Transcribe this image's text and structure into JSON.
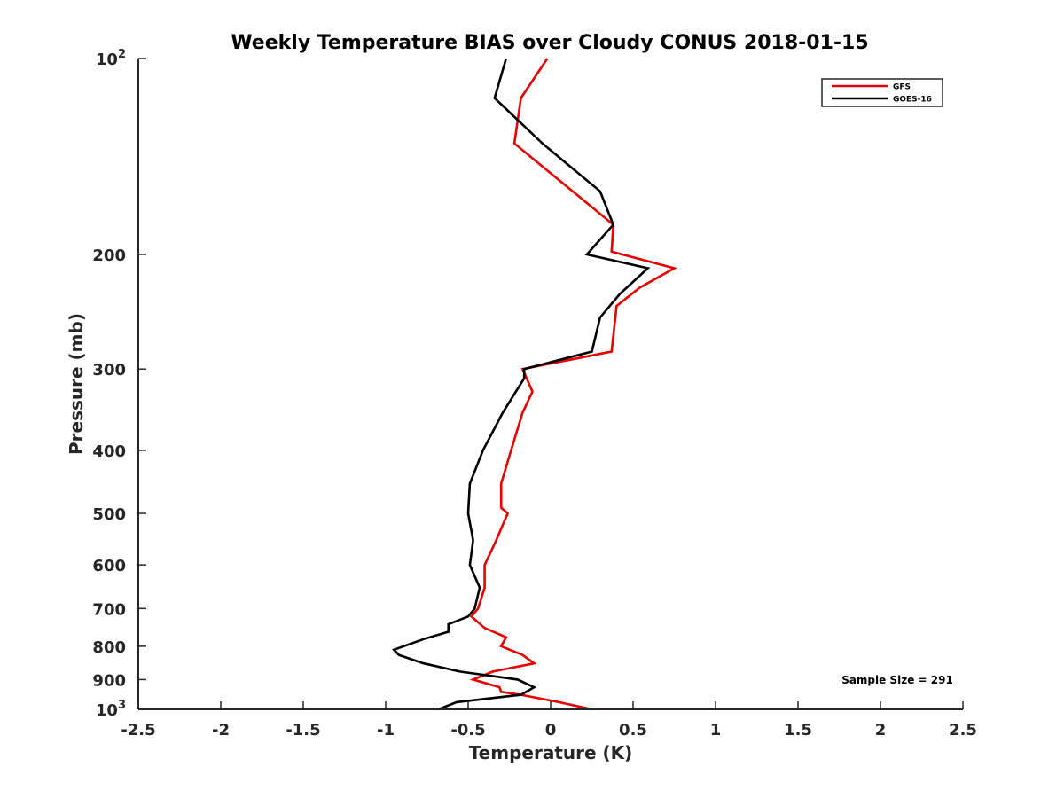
{
  "chart_data": {
    "type": "line",
    "title": "Weekly Temperature BIAS over Cloudy CONUS 2018-01-15",
    "xlabel": "Temperature (K)",
    "ylabel": "Pressure (mb)",
    "xlim": [
      -2.5,
      2.5
    ],
    "ylim": [
      1000,
      100
    ],
    "yscale": "log",
    "y_reversed": true,
    "grid": false,
    "legend_position": "top-right",
    "x_ticks": [
      "-2.5",
      "-2",
      "-1.5",
      "-1",
      "-0.5",
      "0",
      "0.5",
      "1",
      "1.5",
      "2",
      "2.5"
    ],
    "y_ticks": [
      {
        "value": 100,
        "base": "10",
        "exp": "2"
      },
      {
        "value": 200,
        "label": "200"
      },
      {
        "value": 300,
        "label": "300"
      },
      {
        "value": 400,
        "label": "400"
      },
      {
        "value": 500,
        "label": "500"
      },
      {
        "value": 600,
        "label": "600"
      },
      {
        "value": 700,
        "label": "700"
      },
      {
        "value": 800,
        "label": "800"
      },
      {
        "value": 900,
        "label": "900"
      },
      {
        "value": 1000,
        "base": "10",
        "exp": "3"
      }
    ],
    "series": [
      {
        "name": "GFS",
        "color": "#e60000",
        "points": [
          [
            0.25,
            1000
          ],
          [
            0.05,
            975
          ],
          [
            -0.18,
            950
          ],
          [
            -0.3,
            940
          ],
          [
            -0.31,
            925
          ],
          [
            -0.47,
            900
          ],
          [
            -0.35,
            875
          ],
          [
            -0.1,
            850
          ],
          [
            -0.17,
            825
          ],
          [
            -0.3,
            800
          ],
          [
            -0.27,
            775
          ],
          [
            -0.4,
            750
          ],
          [
            -0.48,
            720
          ],
          [
            -0.44,
            700
          ],
          [
            -0.4,
            650
          ],
          [
            -0.4,
            600
          ],
          [
            -0.33,
            550
          ],
          [
            -0.26,
            500
          ],
          [
            -0.3,
            490
          ],
          [
            -0.3,
            450
          ],
          [
            -0.24,
            400
          ],
          [
            -0.17,
            350
          ],
          [
            -0.11,
            325
          ],
          [
            -0.17,
            300
          ],
          [
            0.37,
            282
          ],
          [
            0.4,
            240
          ],
          [
            0.54,
            225
          ],
          [
            0.75,
            210
          ],
          [
            0.37,
            198
          ],
          [
            0.38,
            180
          ],
          [
            -0.22,
            135
          ],
          [
            -0.18,
            115
          ],
          [
            -0.02,
            100
          ]
        ]
      },
      {
        "name": "GOES-16",
        "color": "#000000",
        "points": [
          [
            -0.68,
            1000
          ],
          [
            -0.57,
            975
          ],
          [
            -0.18,
            950
          ],
          [
            -0.1,
            925
          ],
          [
            -0.2,
            900
          ],
          [
            -0.55,
            875
          ],
          [
            -0.77,
            850
          ],
          [
            -0.92,
            825
          ],
          [
            -0.95,
            810
          ],
          [
            -0.77,
            780
          ],
          [
            -0.62,
            760
          ],
          [
            -0.62,
            740
          ],
          [
            -0.5,
            720
          ],
          [
            -0.46,
            700
          ],
          [
            -0.43,
            650
          ],
          [
            -0.49,
            600
          ],
          [
            -0.47,
            550
          ],
          [
            -0.5,
            500
          ],
          [
            -0.49,
            450
          ],
          [
            -0.41,
            400
          ],
          [
            -0.29,
            350
          ],
          [
            -0.16,
            310
          ],
          [
            -0.16,
            300
          ],
          [
            0.25,
            282
          ],
          [
            0.3,
            250
          ],
          [
            0.42,
            230
          ],
          [
            0.59,
            210
          ],
          [
            0.22,
            200
          ],
          [
            0.38,
            180
          ],
          [
            0.3,
            160
          ],
          [
            -0.05,
            135
          ],
          [
            -0.34,
            115
          ],
          [
            -0.27,
            100
          ]
        ]
      }
    ],
    "annotation": "Sample Size = 291"
  }
}
